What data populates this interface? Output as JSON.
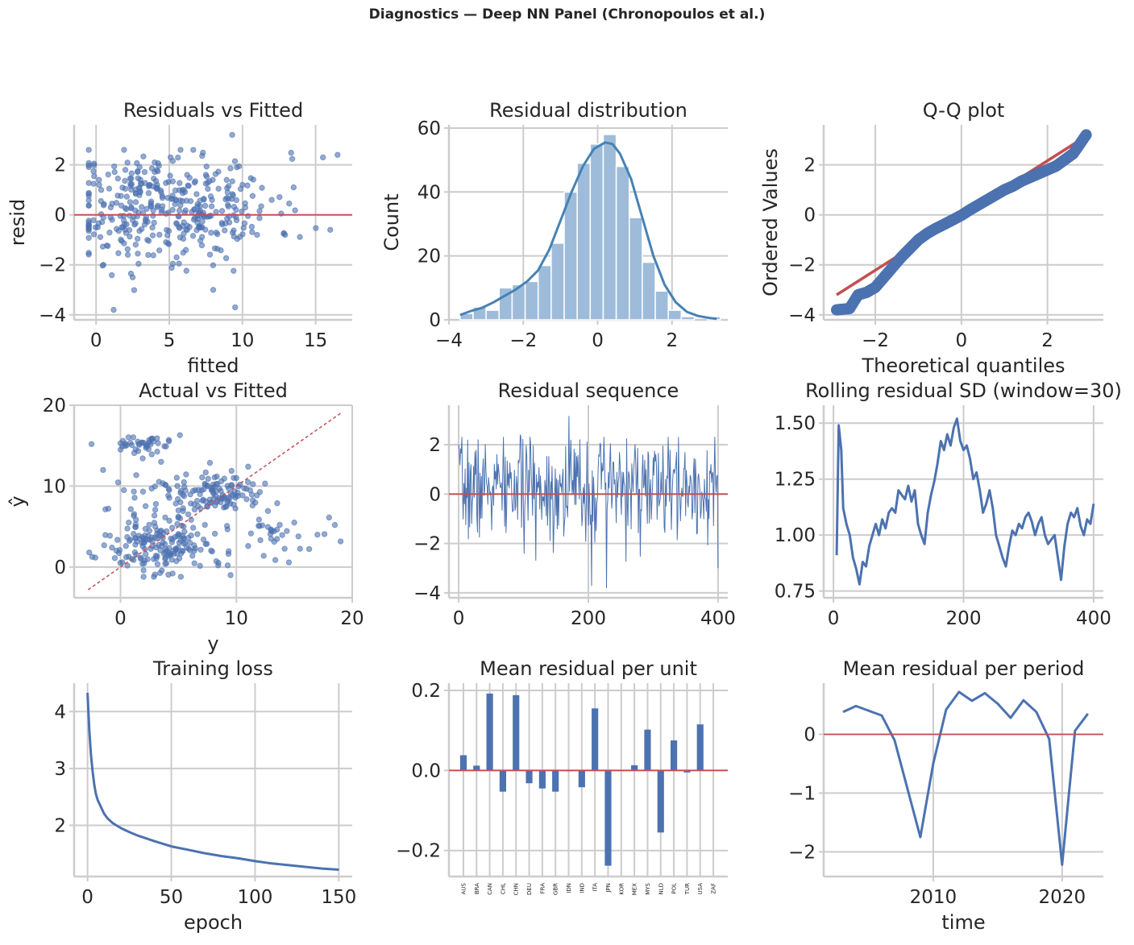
{
  "figure": {
    "suptitle": "Diagnostics — Deep NN Panel (Chronopoulos et al.)",
    "colors": {
      "series": "#4c72b0",
      "ref": "#c44e52",
      "kde": "#4682b4",
      "hist": "#9ebcda",
      "grid": "#cccccc",
      "axis": "#cccccc",
      "text": "#262626"
    }
  },
  "chart_data": [
    {
      "id": "p1",
      "type": "scatter",
      "title": "Residuals vs Fitted",
      "xlabel": "fitted",
      "ylabel": "resid",
      "xlim": [
        -1.5,
        17.5
      ],
      "ylim": [
        -4.2,
        3.6
      ],
      "xticks": [
        0,
        5,
        10,
        15
      ],
      "yticks": [
        -4,
        -2,
        0,
        2
      ],
      "grid": true,
      "hline": 0,
      "n_points": 400,
      "x_range_observed": [
        -0.5,
        16.5
      ],
      "y_range_observed": [
        -3.8,
        3.2
      ],
      "points_sample": [
        [
          0.2,
          1.4
        ],
        [
          0.5,
          -2.0
        ],
        [
          1.0,
          0.3
        ],
        [
          1.2,
          -3.8
        ],
        [
          2.0,
          1.8
        ],
        [
          2.5,
          -2.5
        ],
        [
          3.0,
          0.9
        ],
        [
          3.5,
          -1.0
        ],
        [
          4.0,
          2.1
        ],
        [
          4.5,
          0.2
        ],
        [
          5.5,
          -1.7
        ],
        [
          6.0,
          1.0
        ],
        [
          7.0,
          -0.5
        ],
        [
          7.5,
          1.6
        ],
        [
          8.0,
          -3.0
        ],
        [
          9.0,
          0.4
        ],
        [
          9.3,
          3.2
        ],
        [
          9.5,
          -3.7
        ],
        [
          10.0,
          1.2
        ],
        [
          11.0,
          -0.8
        ],
        [
          12.0,
          0.6
        ],
        [
          13.5,
          1.1
        ],
        [
          15.5,
          2.3
        ],
        [
          16.5,
          2.4
        ],
        [
          16.0,
          -0.6
        ]
      ]
    },
    {
      "id": "p2",
      "type": "bar",
      "title": "Residual distribution",
      "xlabel": "",
      "ylabel": "Count",
      "xlim": [
        -4.0,
        3.5
      ],
      "ylim": [
        0,
        61
      ],
      "xticks": [
        -4,
        -2,
        0,
        2
      ],
      "yticks": [
        0,
        20,
        40,
        60
      ],
      "grid": true,
      "bin_edges": [
        -3.7,
        -3.35,
        -3.0,
        -2.65,
        -2.3,
        -1.95,
        -1.6,
        -1.25,
        -0.9,
        -0.55,
        -0.2,
        0.15,
        0.5,
        0.85,
        1.2,
        1.55,
        1.9,
        2.25,
        2.6,
        2.95,
        3.3
      ],
      "counts": [
        2,
        4,
        3,
        10,
        11,
        12,
        17,
        24,
        40,
        49,
        55,
        58,
        48,
        32,
        18,
        9,
        3,
        1,
        0,
        1
      ],
      "kde": {
        "x": [
          -3.7,
          -3.4,
          -3.1,
          -2.8,
          -2.5,
          -2.2,
          -1.9,
          -1.6,
          -1.3,
          -1.0,
          -0.7,
          -0.4,
          -0.1,
          0.2,
          0.4,
          0.6,
          0.9,
          1.2,
          1.5,
          1.8,
          2.1,
          2.4,
          2.7,
          3.0,
          3.2
        ],
        "y": [
          1.5,
          2.8,
          3.8,
          5.5,
          7.5,
          9.5,
          12.0,
          15.5,
          22.0,
          31.0,
          40.0,
          48.0,
          53.5,
          55.5,
          55.0,
          52.0,
          44.0,
          32.0,
          20.0,
          11.0,
          5.5,
          2.5,
          1.2,
          0.6,
          0.3
        ]
      }
    },
    {
      "id": "p3",
      "type": "scatter",
      "title": "Q-Q plot",
      "xlabel": "Theoretical quantiles",
      "ylabel": "Ordered Values",
      "xlim": [
        -3.2,
        3.3
      ],
      "ylim": [
        -4.2,
        3.6
      ],
      "xticks": [
        -2,
        0,
        2
      ],
      "yticks": [
        -4,
        -2,
        0,
        2
      ],
      "grid": true,
      "reference_line": {
        "x": [
          -2.9,
          2.9
        ],
        "y": [
          -3.2,
          3.15
        ]
      },
      "quantiles": {
        "x": [
          -2.9,
          -2.6,
          -2.4,
          -2.2,
          -2.0,
          -1.8,
          -1.6,
          -1.4,
          -1.2,
          -1.0,
          -0.8,
          -0.6,
          -0.4,
          -0.2,
          0.0,
          0.2,
          0.4,
          0.6,
          0.8,
          1.0,
          1.2,
          1.4,
          1.6,
          1.8,
          2.0,
          2.2,
          2.4,
          2.6,
          2.9
        ],
        "y": [
          -3.8,
          -3.75,
          -3.2,
          -3.1,
          -2.9,
          -2.5,
          -2.1,
          -1.7,
          -1.35,
          -1.0,
          -0.75,
          -0.55,
          -0.38,
          -0.2,
          -0.02,
          0.2,
          0.4,
          0.6,
          0.8,
          1.0,
          1.15,
          1.35,
          1.5,
          1.65,
          1.8,
          1.95,
          2.2,
          2.45,
          3.2
        ]
      }
    },
    {
      "id": "p4",
      "type": "scatter",
      "title": "Actual vs Fitted",
      "xlabel": "y",
      "ylabel": "ŷ",
      "xlim": [
        -4.0,
        20.0
      ],
      "ylim": [
        -3.8,
        20.0
      ],
      "xticks": [
        0,
        10,
        20
      ],
      "yticks": [
        0,
        10,
        20
      ],
      "grid": true,
      "diagonal": {
        "x": [
          -2.8,
          19.0
        ],
        "y": [
          -2.8,
          19.0
        ]
      },
      "n_points": 400,
      "points_sample": [
        [
          -2.5,
          15.2
        ],
        [
          -2.7,
          1.8
        ],
        [
          0.0,
          15.3
        ],
        [
          1.5,
          15.5
        ],
        [
          2.5,
          15.4
        ],
        [
          3.5,
          13.0
        ],
        [
          -1.5,
          12.0
        ],
        [
          0.3,
          9.5
        ],
        [
          2.0,
          3.0
        ],
        [
          3.0,
          5.0
        ],
        [
          4.0,
          2.0
        ],
        [
          5.0,
          7.0
        ],
        [
          6.0,
          3.0
        ],
        [
          7.0,
          9.5
        ],
        [
          8.0,
          10.2
        ],
        [
          9.0,
          8.5
        ],
        [
          10.0,
          11.0
        ],
        [
          11.0,
          10.5
        ],
        [
          9.5,
          -1.0
        ],
        [
          13.0,
          3.5
        ],
        [
          15.0,
          5.5
        ],
        [
          17.0,
          4.0
        ],
        [
          18.5,
          5.2
        ],
        [
          4.5,
          -0.8
        ],
        [
          1.0,
          1.0
        ]
      ]
    },
    {
      "id": "p5",
      "type": "line",
      "title": "Residual sequence",
      "xlabel": "",
      "ylabel": "",
      "xlim": [
        -15,
        415
      ],
      "ylim": [
        -4.2,
        3.6
      ],
      "xticks": [
        0,
        200,
        400
      ],
      "yticks": [
        -4,
        -2,
        0,
        2
      ],
      "grid": true,
      "hline": 0,
      "n_points": 400,
      "notable_points": [
        [
          0,
          2.0
        ],
        [
          95,
          2.4
        ],
        [
          170,
          3.15
        ],
        [
          205,
          -3.7
        ],
        [
          228,
          -3.8
        ],
        [
          400,
          -3.0
        ]
      ]
    },
    {
      "id": "p6",
      "type": "line",
      "title": "Rolling residual SD (window=30)",
      "xlabel": "",
      "ylabel": "",
      "xlim": [
        -15,
        415
      ],
      "ylim": [
        0.72,
        1.58
      ],
      "xticks": [
        0,
        200,
        400
      ],
      "yticks": [
        0.75,
        1.0,
        1.25,
        1.5
      ],
      "grid": true,
      "x": [
        5,
        8,
        12,
        15,
        20,
        25,
        30,
        35,
        40,
        45,
        50,
        55,
        60,
        65,
        70,
        75,
        80,
        85,
        90,
        95,
        100,
        105,
        110,
        115,
        120,
        125,
        130,
        135,
        140,
        145,
        150,
        155,
        160,
        165,
        170,
        175,
        180,
        185,
        190,
        195,
        200,
        205,
        210,
        215,
        220,
        225,
        230,
        235,
        240,
        245,
        250,
        255,
        260,
        265,
        270,
        275,
        280,
        285,
        290,
        295,
        300,
        305,
        310,
        315,
        320,
        325,
        330,
        335,
        340,
        345,
        350,
        355,
        360,
        365,
        370,
        375,
        380,
        385,
        390,
        395,
        400
      ],
      "y": [
        0.91,
        1.49,
        1.38,
        1.12,
        1.05,
        1.0,
        0.9,
        0.85,
        0.78,
        0.88,
        0.86,
        0.95,
        1.0,
        1.05,
        1.0,
        1.07,
        1.03,
        1.1,
        1.12,
        1.1,
        1.2,
        1.18,
        1.16,
        1.22,
        1.15,
        1.2,
        1.05,
        1.0,
        0.96,
        1.1,
        1.18,
        1.24,
        1.32,
        1.42,
        1.38,
        1.45,
        1.4,
        1.48,
        1.52,
        1.42,
        1.38,
        1.4,
        1.34,
        1.25,
        1.28,
        1.2,
        1.1,
        1.14,
        1.2,
        1.12,
        1.0,
        0.95,
        0.9,
        0.86,
        0.95,
        1.02,
        1.0,
        1.05,
        1.03,
        1.08,
        1.1,
        1.06,
        1.0,
        1.05,
        1.08,
        1.0,
        0.96,
        0.98,
        1.0,
        0.9,
        0.8,
        0.95,
        1.05,
        1.1,
        1.08,
        1.12,
        1.04,
        1.0,
        1.07,
        1.05,
        1.14
      ]
    },
    {
      "id": "p7",
      "type": "line",
      "title": "Training loss",
      "xlabel": "epoch",
      "ylabel": "",
      "xlim": [
        -8,
        158
      ],
      "ylim": [
        1.1,
        4.5
      ],
      "xticks": [
        0,
        50,
        100,
        150
      ],
      "yticks": [
        2,
        3,
        4
      ],
      "grid": true,
      "x": [
        0,
        1,
        2,
        3,
        4,
        5,
        6,
        8,
        10,
        12,
        15,
        20,
        25,
        30,
        40,
        50,
        60,
        70,
        80,
        90,
        100,
        110,
        120,
        130,
        140,
        150
      ],
      "y": [
        4.33,
        3.7,
        3.25,
        2.95,
        2.72,
        2.55,
        2.45,
        2.32,
        2.2,
        2.12,
        2.04,
        1.95,
        1.88,
        1.82,
        1.72,
        1.63,
        1.57,
        1.51,
        1.46,
        1.42,
        1.37,
        1.33,
        1.3,
        1.27,
        1.24,
        1.22
      ]
    },
    {
      "id": "p8",
      "type": "bar",
      "title": "Mean residual per unit",
      "xlabel": "",
      "ylabel": "",
      "ylim": [
        -0.265,
        0.218
      ],
      "yticks": [
        -0.2,
        0.0,
        0.2
      ],
      "grid": true,
      "hline": 0,
      "categories": [
        "AUS",
        "BRA",
        "CAN",
        "CHL",
        "CHN",
        "DEU",
        "FRA",
        "GBR",
        "IDN",
        "IND",
        "ITA",
        "JPN",
        "KOR",
        "MEX",
        "MYS",
        "NLD",
        "POL",
        "TUR",
        "USA",
        "ZAF"
      ],
      "values": [
        0.038,
        0.012,
        0.192,
        -0.053,
        0.188,
        -0.032,
        -0.045,
        -0.053,
        -0.002,
        -0.042,
        0.155,
        -0.238,
        -0.001,
        0.013,
        0.102,
        -0.155,
        0.075,
        -0.005,
        0.115,
        0.001
      ]
    },
    {
      "id": "p9",
      "type": "line",
      "title": "Mean residual per period",
      "xlabel": "time",
      "ylabel": "",
      "xlim": [
        2001.5,
        2023.2
      ],
      "ylim": [
        -2.42,
        0.87
      ],
      "xticks": [
        2010,
        2020
      ],
      "yticks": [
        -2,
        -1,
        0
      ],
      "grid": true,
      "hline": 0,
      "x": [
        2003,
        2004,
        2006,
        2007,
        2009,
        2010,
        2011,
        2012,
        2013,
        2014,
        2015,
        2016,
        2017,
        2018,
        2019,
        2020,
        2021,
        2022
      ],
      "y": [
        0.38,
        0.48,
        0.32,
        -0.1,
        -1.75,
        -0.5,
        0.42,
        0.72,
        0.57,
        0.7,
        0.52,
        0.28,
        0.58,
        0.38,
        -0.08,
        -2.22,
        0.06,
        0.35
      ]
    }
  ]
}
